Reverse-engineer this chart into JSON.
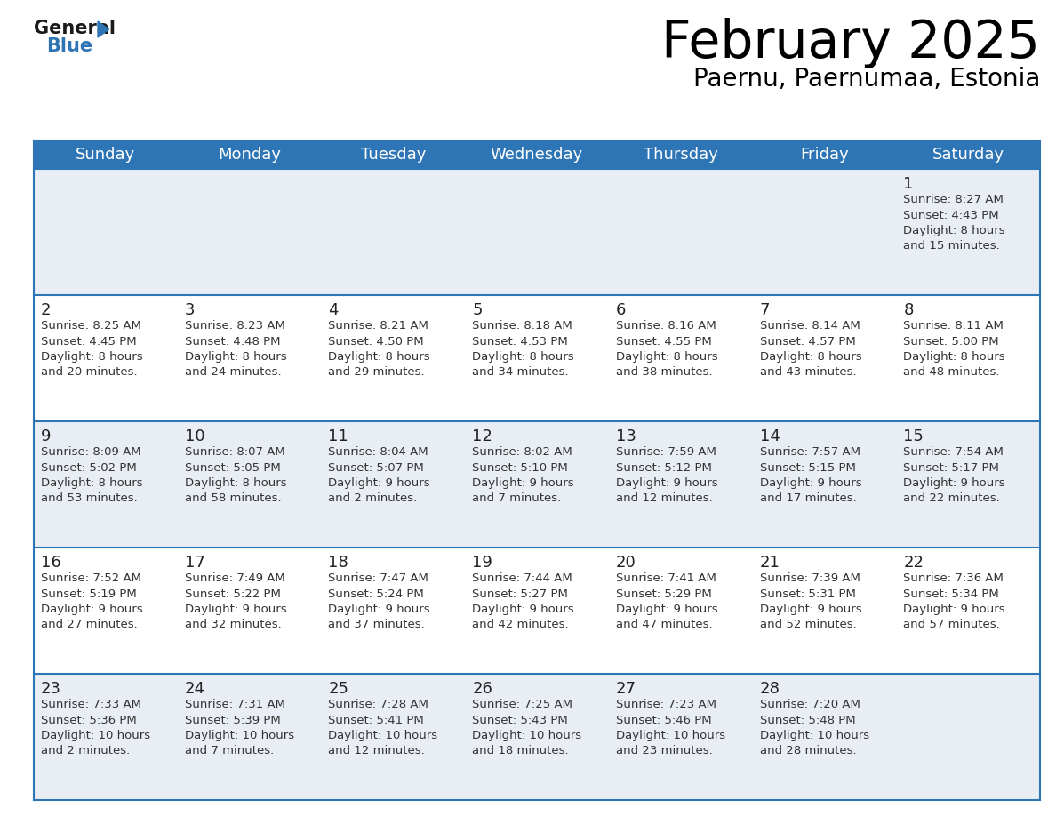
{
  "title": "February 2025",
  "subtitle": "Paernu, Paernumaa, Estonia",
  "header_color": "#2e75b6",
  "header_text_color": "#ffffff",
  "day_names": [
    "Sunday",
    "Monday",
    "Tuesday",
    "Wednesday",
    "Thursday",
    "Friday",
    "Saturday"
  ],
  "cell_bg_light": "#e9eef4",
  "cell_bg_white": "#ffffff",
  "text_color": "#333333",
  "day_num_color": "#222222",
  "line_color": "#2e75b6",
  "title_fontsize": 42,
  "subtitle_fontsize": 20,
  "header_fontsize": 13,
  "day_num_fontsize": 13,
  "info_fontsize": 9.5,
  "calendar": [
    [
      {
        "day": null,
        "info": ""
      },
      {
        "day": null,
        "info": ""
      },
      {
        "day": null,
        "info": ""
      },
      {
        "day": null,
        "info": ""
      },
      {
        "day": null,
        "info": ""
      },
      {
        "day": null,
        "info": ""
      },
      {
        "day": 1,
        "info": "Sunrise: 8:27 AM\nSunset: 4:43 PM\nDaylight: 8 hours\nand 15 minutes."
      }
    ],
    [
      {
        "day": 2,
        "info": "Sunrise: 8:25 AM\nSunset: 4:45 PM\nDaylight: 8 hours\nand 20 minutes."
      },
      {
        "day": 3,
        "info": "Sunrise: 8:23 AM\nSunset: 4:48 PM\nDaylight: 8 hours\nand 24 minutes."
      },
      {
        "day": 4,
        "info": "Sunrise: 8:21 AM\nSunset: 4:50 PM\nDaylight: 8 hours\nand 29 minutes."
      },
      {
        "day": 5,
        "info": "Sunrise: 8:18 AM\nSunset: 4:53 PM\nDaylight: 8 hours\nand 34 minutes."
      },
      {
        "day": 6,
        "info": "Sunrise: 8:16 AM\nSunset: 4:55 PM\nDaylight: 8 hours\nand 38 minutes."
      },
      {
        "day": 7,
        "info": "Sunrise: 8:14 AM\nSunset: 4:57 PM\nDaylight: 8 hours\nand 43 minutes."
      },
      {
        "day": 8,
        "info": "Sunrise: 8:11 AM\nSunset: 5:00 PM\nDaylight: 8 hours\nand 48 minutes."
      }
    ],
    [
      {
        "day": 9,
        "info": "Sunrise: 8:09 AM\nSunset: 5:02 PM\nDaylight: 8 hours\nand 53 minutes."
      },
      {
        "day": 10,
        "info": "Sunrise: 8:07 AM\nSunset: 5:05 PM\nDaylight: 8 hours\nand 58 minutes."
      },
      {
        "day": 11,
        "info": "Sunrise: 8:04 AM\nSunset: 5:07 PM\nDaylight: 9 hours\nand 2 minutes."
      },
      {
        "day": 12,
        "info": "Sunrise: 8:02 AM\nSunset: 5:10 PM\nDaylight: 9 hours\nand 7 minutes."
      },
      {
        "day": 13,
        "info": "Sunrise: 7:59 AM\nSunset: 5:12 PM\nDaylight: 9 hours\nand 12 minutes."
      },
      {
        "day": 14,
        "info": "Sunrise: 7:57 AM\nSunset: 5:15 PM\nDaylight: 9 hours\nand 17 minutes."
      },
      {
        "day": 15,
        "info": "Sunrise: 7:54 AM\nSunset: 5:17 PM\nDaylight: 9 hours\nand 22 minutes."
      }
    ],
    [
      {
        "day": 16,
        "info": "Sunrise: 7:52 AM\nSunset: 5:19 PM\nDaylight: 9 hours\nand 27 minutes."
      },
      {
        "day": 17,
        "info": "Sunrise: 7:49 AM\nSunset: 5:22 PM\nDaylight: 9 hours\nand 32 minutes."
      },
      {
        "day": 18,
        "info": "Sunrise: 7:47 AM\nSunset: 5:24 PM\nDaylight: 9 hours\nand 37 minutes."
      },
      {
        "day": 19,
        "info": "Sunrise: 7:44 AM\nSunset: 5:27 PM\nDaylight: 9 hours\nand 42 minutes."
      },
      {
        "day": 20,
        "info": "Sunrise: 7:41 AM\nSunset: 5:29 PM\nDaylight: 9 hours\nand 47 minutes."
      },
      {
        "day": 21,
        "info": "Sunrise: 7:39 AM\nSunset: 5:31 PM\nDaylight: 9 hours\nand 52 minutes."
      },
      {
        "day": 22,
        "info": "Sunrise: 7:36 AM\nSunset: 5:34 PM\nDaylight: 9 hours\nand 57 minutes."
      }
    ],
    [
      {
        "day": 23,
        "info": "Sunrise: 7:33 AM\nSunset: 5:36 PM\nDaylight: 10 hours\nand 2 minutes."
      },
      {
        "day": 24,
        "info": "Sunrise: 7:31 AM\nSunset: 5:39 PM\nDaylight: 10 hours\nand 7 minutes."
      },
      {
        "day": 25,
        "info": "Sunrise: 7:28 AM\nSunset: 5:41 PM\nDaylight: 10 hours\nand 12 minutes."
      },
      {
        "day": 26,
        "info": "Sunrise: 7:25 AM\nSunset: 5:43 PM\nDaylight: 10 hours\nand 18 minutes."
      },
      {
        "day": 27,
        "info": "Sunrise: 7:23 AM\nSunset: 5:46 PM\nDaylight: 10 hours\nand 23 minutes."
      },
      {
        "day": 28,
        "info": "Sunrise: 7:20 AM\nSunset: 5:48 PM\nDaylight: 10 hours\nand 28 minutes."
      },
      {
        "day": null,
        "info": ""
      }
    ]
  ]
}
